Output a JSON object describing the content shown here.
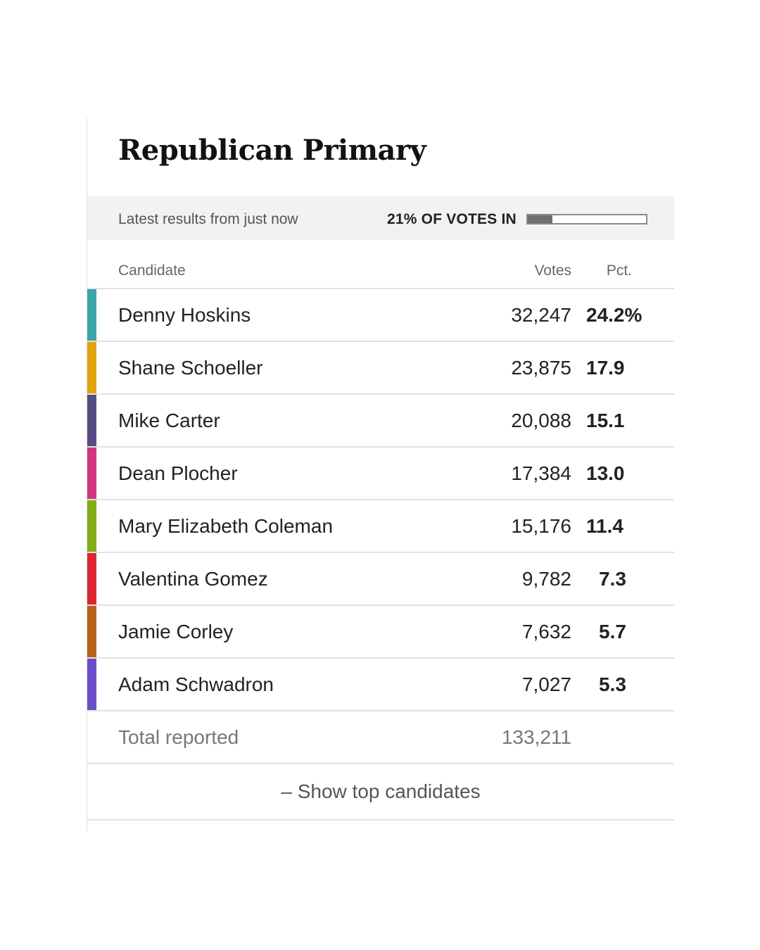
{
  "title": "Republican Primary",
  "status": {
    "latest_text": "Latest results from just now",
    "votes_in_text": "21% OF VOTES IN",
    "reporting_fraction": 0.21
  },
  "table": {
    "headers": {
      "candidate": "Candidate",
      "votes": "Votes",
      "pct": "Pct."
    },
    "rows": [
      {
        "name": "Denny Hoskins",
        "votes": "32,247",
        "pct": "24.2%",
        "color": "#3aa5a8"
      },
      {
        "name": "Shane Schoeller",
        "votes": "23,875",
        "pct": "17.9",
        "color": "#e2a20f"
      },
      {
        "name": "Mike Carter",
        "votes": "20,088",
        "pct": "15.1",
        "color": "#574b84"
      },
      {
        "name": "Dean Plocher",
        "votes": "17,384",
        "pct": "13.0",
        "color": "#d0367f"
      },
      {
        "name": "Mary Elizabeth Coleman",
        "votes": "15,176",
        "pct": "11.4",
        "color": "#84ad1a"
      },
      {
        "name": "Valentina Gomez",
        "votes": "9,782",
        "pct": "7.3",
        "color": "#dd2530"
      },
      {
        "name": "Jamie Corley",
        "votes": "7,632",
        "pct": "5.7",
        "color": "#b8621a"
      },
      {
        "name": "Adam Schwadron",
        "votes": "7,027",
        "pct": "5.3",
        "color": "#6b4fc6"
      }
    ],
    "total": {
      "label": "Total reported",
      "votes": "133,211"
    }
  },
  "show_button": "– Show top candidates"
}
